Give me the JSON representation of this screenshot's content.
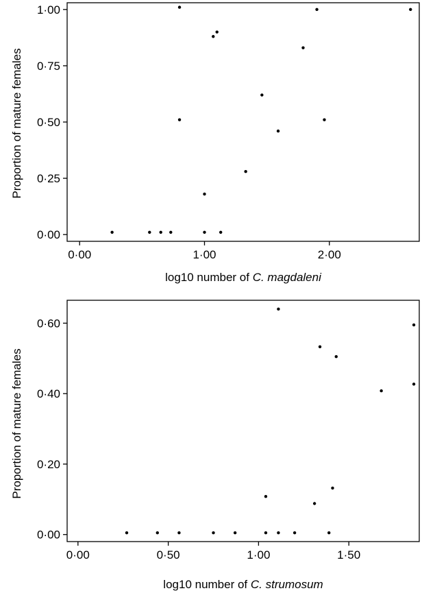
{
  "chart_data": [
    {
      "type": "scatter",
      "title": "",
      "xlabel": {
        "prefix": "log10 number of ",
        "species": "C. magdaleni"
      },
      "ylabel": "Proportion of mature females",
      "xlim": [
        -0.1,
        2.72
      ],
      "ylim": [
        -0.03,
        1.03
      ],
      "xticks": [
        0.0,
        1.0,
        2.0
      ],
      "xtick_labels": [
        "0·00",
        "1·00",
        "2·00"
      ],
      "yticks": [
        0.0,
        0.25,
        0.5,
        0.75,
        1.0
      ],
      "ytick_labels": [
        "0·00",
        "0·25",
        "0·50",
        "0·75",
        "1·00"
      ],
      "grid": false,
      "points": [
        {
          "x": 0.26,
          "y": 0.01
        },
        {
          "x": 0.56,
          "y": 0.01
        },
        {
          "x": 0.65,
          "y": 0.01
        },
        {
          "x": 0.73,
          "y": 0.01
        },
        {
          "x": 0.8,
          "y": 1.01
        },
        {
          "x": 0.8,
          "y": 0.51
        },
        {
          "x": 1.0,
          "y": 0.18
        },
        {
          "x": 1.0,
          "y": 0.01
        },
        {
          "x": 1.07,
          "y": 0.88
        },
        {
          "x": 1.1,
          "y": 0.9
        },
        {
          "x": 1.13,
          "y": 0.01
        },
        {
          "x": 1.33,
          "y": 0.28
        },
        {
          "x": 1.46,
          "y": 0.62
        },
        {
          "x": 1.59,
          "y": 0.46
        },
        {
          "x": 1.79,
          "y": 0.83
        },
        {
          "x": 1.9,
          "y": 1.0
        },
        {
          "x": 1.96,
          "y": 0.51
        },
        {
          "x": 2.65,
          "y": 1.0
        }
      ]
    },
    {
      "type": "scatter",
      "title": "",
      "xlabel": {
        "prefix": "log10 number of ",
        "species": "C. strumosum"
      },
      "ylabel": "Proportion of mature females",
      "xlim": [
        -0.06,
        1.89
      ],
      "ylim": [
        -0.02,
        0.665
      ],
      "xticks": [
        0.0,
        0.5,
        1.0,
        1.5
      ],
      "xtick_labels": [
        "0·00",
        "0·50",
        "1·00",
        "1·50"
      ],
      "yticks": [
        0.0,
        0.2,
        0.4,
        0.6
      ],
      "ytick_labels": [
        "0·00",
        "0·20",
        "0·40",
        "0·60"
      ],
      "grid": false,
      "points": [
        {
          "x": 0.27,
          "y": 0.005
        },
        {
          "x": 0.44,
          "y": 0.005
        },
        {
          "x": 0.56,
          "y": 0.005
        },
        {
          "x": 0.75,
          "y": 0.005
        },
        {
          "x": 0.87,
          "y": 0.005
        },
        {
          "x": 1.04,
          "y": 0.005
        },
        {
          "x": 1.04,
          "y": 0.108
        },
        {
          "x": 1.11,
          "y": 0.005
        },
        {
          "x": 1.11,
          "y": 0.64
        },
        {
          "x": 1.2,
          "y": 0.005
        },
        {
          "x": 1.31,
          "y": 0.088
        },
        {
          "x": 1.34,
          "y": 0.533
        },
        {
          "x": 1.39,
          "y": 0.005
        },
        {
          "x": 1.41,
          "y": 0.132
        },
        {
          "x": 1.43,
          "y": 0.505
        },
        {
          "x": 1.68,
          "y": 0.408
        },
        {
          "x": 1.86,
          "y": 0.427
        },
        {
          "x": 1.86,
          "y": 0.595
        }
      ]
    }
  ]
}
